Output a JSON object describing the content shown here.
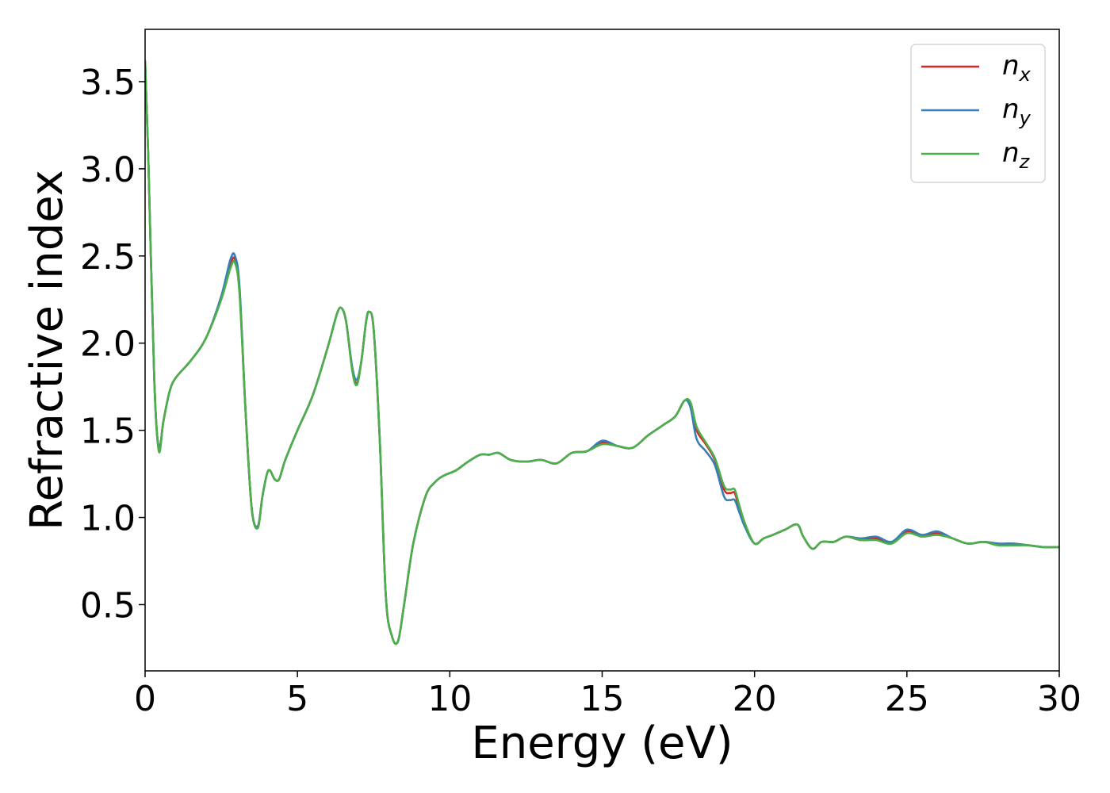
{
  "chart_data": {
    "type": "line",
    "title": "",
    "xlabel": "Energy (eV)",
    "ylabel": "Refractive index",
    "xlim": [
      0,
      30
    ],
    "ylim": [
      0.12,
      3.8
    ],
    "xticks": [
      0,
      5,
      10,
      15,
      20,
      25,
      30
    ],
    "xtick_labels": [
      "0",
      "5",
      "10",
      "15",
      "20",
      "25",
      "30"
    ],
    "yticks": [
      0.5,
      1.0,
      1.5,
      2.0,
      2.5,
      3.0,
      3.5
    ],
    "ytick_labels": [
      "0.5",
      "1.0",
      "1.5",
      "2.0",
      "2.5",
      "3.0",
      "3.5"
    ],
    "grid": false,
    "legend_position": "top-right",
    "x": [
      0,
      0.1,
      0.3,
      0.45,
      0.6,
      0.8,
      1.0,
      1.5,
      2.0,
      2.5,
      2.8,
      2.95,
      3.1,
      3.3,
      3.5,
      3.7,
      3.85,
      4.0,
      4.1,
      4.25,
      4.4,
      4.6,
      5.0,
      5.5,
      6.0,
      6.3,
      6.45,
      6.6,
      6.8,
      6.95,
      7.1,
      7.25,
      7.35,
      7.5,
      7.7,
      7.9,
      8.1,
      8.3,
      8.5,
      8.8,
      9.2,
      9.5,
      9.8,
      10.2,
      10.6,
      11.0,
      11.3,
      11.6,
      12.0,
      12.5,
      13.0,
      13.5,
      14.0,
      14.5,
      15.0,
      15.5,
      16.0,
      16.5,
      17.0,
      17.4,
      17.7,
      17.9,
      18.1,
      18.4,
      18.7,
      19.0,
      19.2,
      19.35,
      19.5,
      19.7,
      20.0,
      20.3,
      20.6,
      21.0,
      21.4,
      21.6,
      21.9,
      22.2,
      22.6,
      23.0,
      23.5,
      24.0,
      24.5,
      25.0,
      25.5,
      26.0,
      26.5,
      27.0,
      27.5,
      28.0,
      28.5,
      29.0,
      29.5,
      30.0
    ],
    "series": [
      {
        "name": "n",
        "name_sub": "x",
        "color": "#d62728",
        "values": [
          3.62,
          3.1,
          1.8,
          1.4,
          1.55,
          1.72,
          1.8,
          1.9,
          2.03,
          2.26,
          2.45,
          2.48,
          2.3,
          1.6,
          1.05,
          0.95,
          1.12,
          1.25,
          1.27,
          1.22,
          1.22,
          1.33,
          1.5,
          1.7,
          1.98,
          2.17,
          2.2,
          2.12,
          1.85,
          1.77,
          1.9,
          2.12,
          2.18,
          2.08,
          1.45,
          0.55,
          0.32,
          0.29,
          0.5,
          0.85,
          1.12,
          1.2,
          1.24,
          1.27,
          1.32,
          1.36,
          1.36,
          1.37,
          1.33,
          1.32,
          1.33,
          1.31,
          1.37,
          1.38,
          1.43,
          1.41,
          1.4,
          1.47,
          1.53,
          1.58,
          1.67,
          1.65,
          1.5,
          1.42,
          1.33,
          1.16,
          1.14,
          1.14,
          1.05,
          0.95,
          0.85,
          0.88,
          0.9,
          0.93,
          0.96,
          0.89,
          0.82,
          0.86,
          0.86,
          0.89,
          0.87,
          0.88,
          0.86,
          0.92,
          0.89,
          0.91,
          0.88,
          0.85,
          0.86,
          0.85,
          0.85,
          0.84,
          0.83,
          0.83
        ]
      },
      {
        "name": "n",
        "name_sub": "y",
        "color": "#377eb8",
        "values": [
          3.62,
          3.1,
          1.8,
          1.4,
          1.55,
          1.72,
          1.8,
          1.9,
          2.03,
          2.27,
          2.48,
          2.5,
          2.32,
          1.6,
          1.05,
          0.95,
          1.12,
          1.25,
          1.27,
          1.22,
          1.22,
          1.33,
          1.5,
          1.7,
          1.98,
          2.17,
          2.2,
          2.12,
          1.86,
          1.79,
          1.9,
          2.12,
          2.18,
          2.08,
          1.45,
          0.55,
          0.32,
          0.29,
          0.5,
          0.85,
          1.12,
          1.2,
          1.24,
          1.27,
          1.32,
          1.36,
          1.36,
          1.37,
          1.33,
          1.32,
          1.33,
          1.31,
          1.37,
          1.38,
          1.44,
          1.41,
          1.4,
          1.47,
          1.53,
          1.58,
          1.67,
          1.63,
          1.45,
          1.38,
          1.3,
          1.12,
          1.1,
          1.1,
          1.03,
          0.94,
          0.85,
          0.88,
          0.9,
          0.93,
          0.96,
          0.89,
          0.82,
          0.86,
          0.86,
          0.89,
          0.88,
          0.89,
          0.86,
          0.93,
          0.9,
          0.92,
          0.88,
          0.85,
          0.86,
          0.85,
          0.85,
          0.84,
          0.83,
          0.83
        ]
      },
      {
        "name": "n",
        "name_sub": "z",
        "color": "#4daf4a",
        "values": [
          3.62,
          3.1,
          1.8,
          1.38,
          1.55,
          1.72,
          1.8,
          1.9,
          2.03,
          2.25,
          2.43,
          2.46,
          2.28,
          1.6,
          1.05,
          0.94,
          1.12,
          1.25,
          1.27,
          1.22,
          1.22,
          1.33,
          1.5,
          1.7,
          1.98,
          2.17,
          2.2,
          2.12,
          1.84,
          1.76,
          1.9,
          2.12,
          2.18,
          2.08,
          1.45,
          0.55,
          0.32,
          0.29,
          0.5,
          0.85,
          1.12,
          1.2,
          1.24,
          1.27,
          1.32,
          1.36,
          1.36,
          1.37,
          1.33,
          1.32,
          1.33,
          1.31,
          1.37,
          1.38,
          1.42,
          1.41,
          1.4,
          1.47,
          1.53,
          1.58,
          1.67,
          1.66,
          1.52,
          1.43,
          1.34,
          1.18,
          1.16,
          1.16,
          1.07,
          0.96,
          0.85,
          0.88,
          0.9,
          0.93,
          0.96,
          0.89,
          0.82,
          0.86,
          0.86,
          0.89,
          0.87,
          0.87,
          0.85,
          0.91,
          0.89,
          0.9,
          0.88,
          0.85,
          0.86,
          0.84,
          0.84,
          0.84,
          0.83,
          0.83
        ]
      }
    ]
  }
}
